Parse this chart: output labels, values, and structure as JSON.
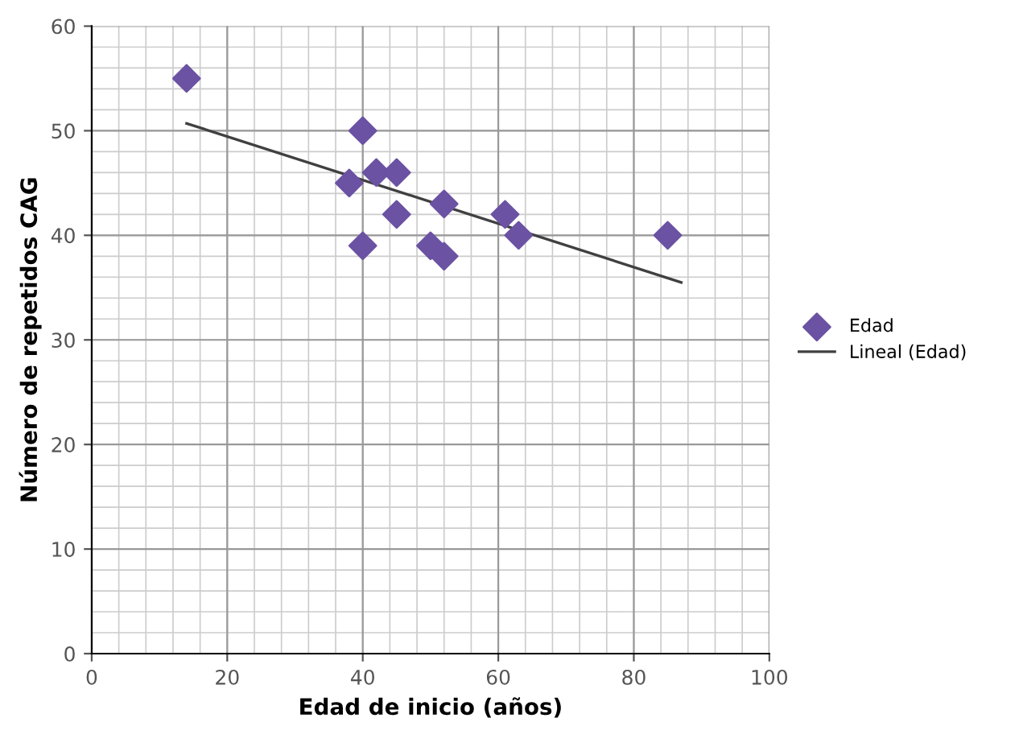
{
  "chart_data": {
    "type": "scatter",
    "xlabel": "Edad de inicio (años)",
    "ylabel": "Número de repetidos CAG",
    "series": [
      {
        "name": "Edad",
        "color": "#6b52a3",
        "marker": "diamond",
        "x": [
          14,
          40,
          38,
          42,
          45,
          45,
          40,
          52,
          50,
          52,
          61,
          63,
          85
        ],
        "values": [
          55,
          50,
          45,
          46,
          46,
          42,
          39,
          43,
          39,
          38,
          42,
          40,
          40
        ]
      },
      {
        "name": "Lineal (Edad)",
        "type": "line",
        "color": "#404040",
        "marker": "none",
        "x": [
          14,
          87
        ],
        "values": [
          50.7,
          35.5
        ]
      }
    ],
    "xlim": [
      0,
      100
    ],
    "xticks": [
      0,
      20,
      40,
      60,
      80,
      100
    ],
    "ylim": [
      0,
      60
    ],
    "yticks": [
      0,
      10,
      20,
      30,
      40,
      50,
      60
    ],
    "grid": true,
    "legend": "right"
  }
}
